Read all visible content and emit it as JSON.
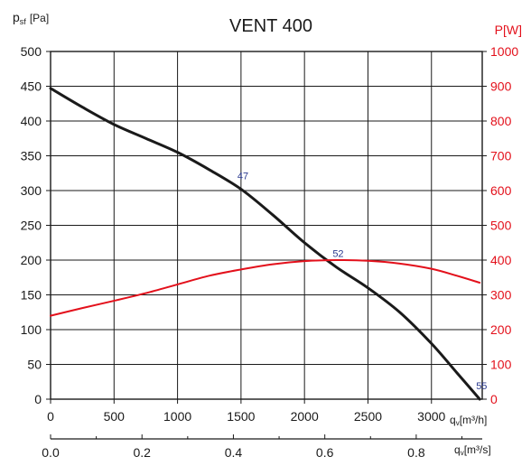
{
  "chart_data": {
    "type": "line",
    "title": "VENT 400",
    "colors": {
      "pressure": "#1a1a1a",
      "power": "#e3101b",
      "grid": "#1a1a1a",
      "point_label": "#2b3a8f"
    },
    "grid": true,
    "left_axis": {
      "label_main": "p",
      "label_sub": "sf",
      "label_unit": "[Pa]",
      "ylim": [
        0,
        500
      ],
      "ticks": [
        "0",
        "50",
        "100",
        "150",
        "200",
        "250",
        "300",
        "350",
        "400",
        "450",
        "500"
      ]
    },
    "right_axis": {
      "label": "P[W]",
      "ylim": [
        0,
        1000
      ],
      "ticks": [
        "0",
        "100",
        "200",
        "300",
        "400",
        "500",
        "600",
        "700",
        "800",
        "900",
        "1000"
      ]
    },
    "x_axis_primary": {
      "label_main": "q",
      "label_sub": "v",
      "label_unit": "[m³/h]",
      "xlim": [
        0,
        3400
      ],
      "ticks": [
        "0",
        "500",
        "1000",
        "1500",
        "2000",
        "2500",
        "3000"
      ]
    },
    "x_axis_secondary": {
      "label_main": "q",
      "label_sub": "v",
      "label_unit": "[m³/s]",
      "ticks": [
        "0.0",
        "0.2",
        "0.4",
        "0.6",
        "0.8"
      ]
    },
    "series": [
      {
        "key": "pressure",
        "axis": "left",
        "x": [
          0,
          250,
          500,
          750,
          1000,
          1250,
          1500,
          1750,
          2000,
          2250,
          2500,
          2750,
          3000,
          3200,
          3380
        ],
        "y": [
          447,
          420,
          395,
          375,
          355,
          330,
          302,
          265,
          225,
          190,
          160,
          125,
          80,
          38,
          0
        ]
      },
      {
        "key": "power",
        "axis": "right",
        "x": [
          0,
          250,
          500,
          750,
          1000,
          1250,
          1500,
          1750,
          2000,
          2250,
          2500,
          2750,
          3000,
          3200,
          3380
        ],
        "y": [
          240,
          262,
          283,
          305,
          330,
          355,
          373,
          388,
          397,
          400,
          398,
          390,
          375,
          355,
          335
        ]
      }
    ],
    "point_labels": [
      {
        "text": "47",
        "x": 1500,
        "y": 302
      },
      {
        "text": "52",
        "x": 2250,
        "y": 190
      },
      {
        "text": "55",
        "x": 3380,
        "y": 0
      }
    ]
  }
}
